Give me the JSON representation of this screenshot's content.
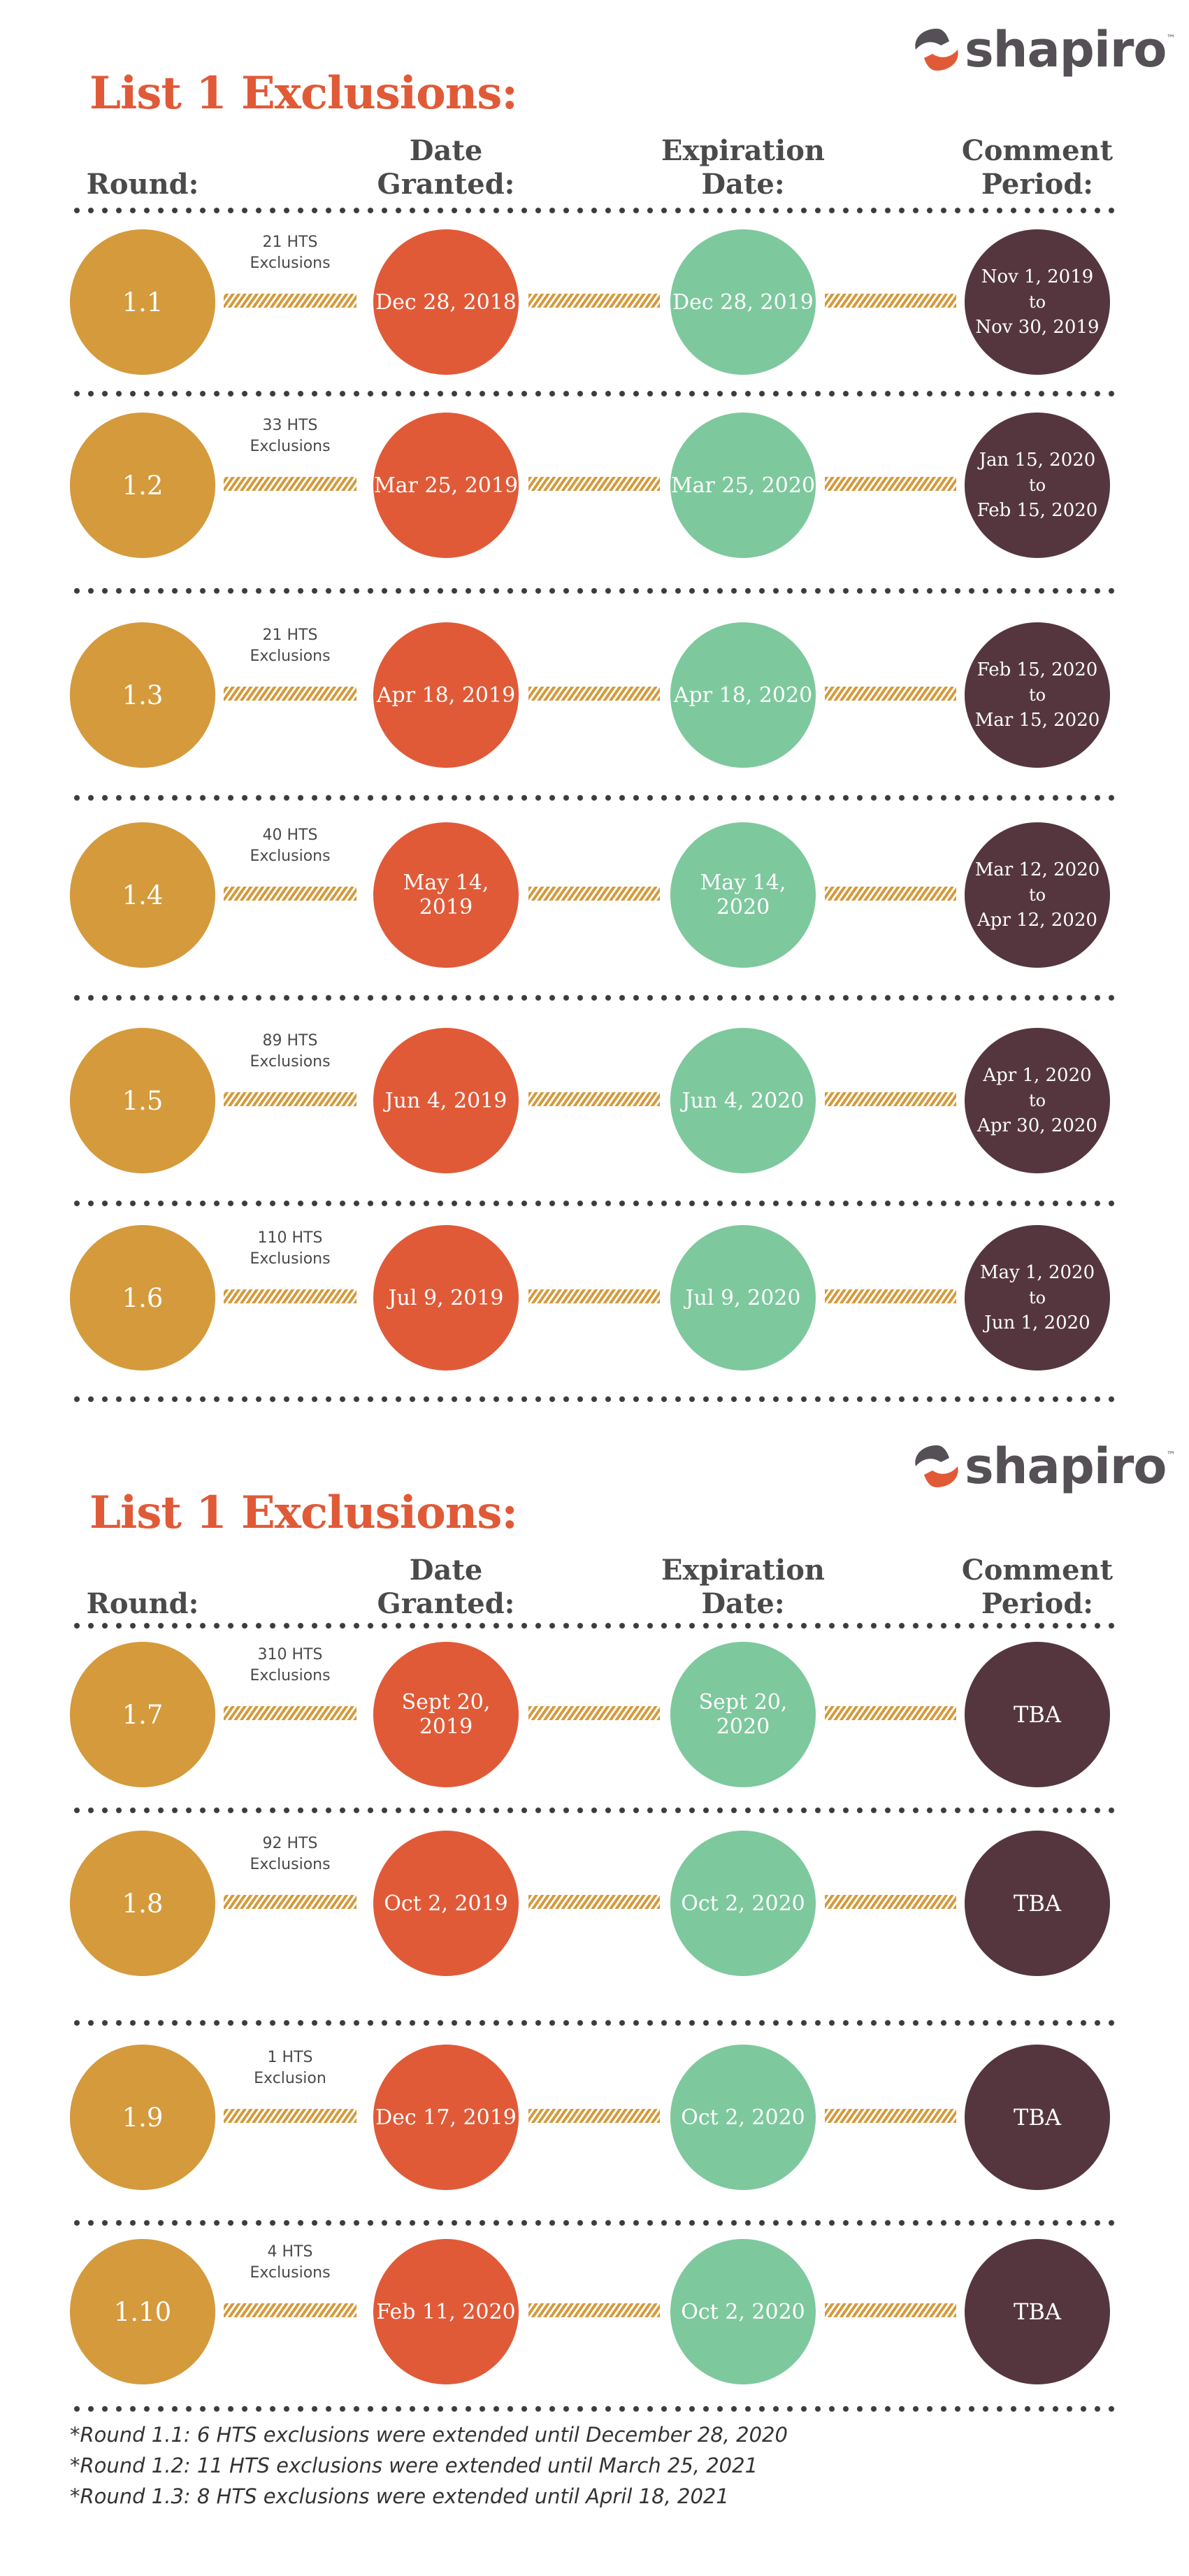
{
  "colors": {
    "title": "#e05a38",
    "round": "#d49a3c",
    "granted": "#e05a38",
    "expiration": "#7ec89e",
    "comment": "#55363f"
  },
  "logo": {
    "text": "shapiro",
    "tm": "™",
    "icon": "shapiro-swirl-icon"
  },
  "sections": [
    {
      "title": "List 1 Exclusions:",
      "headers": {
        "round": "Round:",
        "granted_1": "Date",
        "granted_2": "Granted:",
        "expiration_1": "Expiration",
        "expiration_2": "Date:",
        "comment_1": "Comment",
        "comment_2": "Period:"
      },
      "rows": [
        {
          "round": "1.1",
          "hts_1": "21 HTS",
          "hts_2": "Exclusions",
          "granted": "Dec 28, 2018",
          "expiration": "Dec 28, 2019",
          "comment_1": "Nov 1, 2019",
          "comment_to": "to",
          "comment_2": "Nov 30, 2019"
        },
        {
          "round": "1.2",
          "hts_1": "33 HTS",
          "hts_2": "Exclusions",
          "granted": "Mar 25, 2019",
          "expiration": "Mar 25, 2020",
          "comment_1": "Jan 15, 2020",
          "comment_to": "to",
          "comment_2": "Feb 15, 2020"
        },
        {
          "round": "1.3",
          "hts_1": "21 HTS",
          "hts_2": "Exclusions",
          "granted": "Apr 18, 2019",
          "expiration": "Apr 18, 2020",
          "comment_1": "Feb 15, 2020",
          "comment_to": "to",
          "comment_2": "Mar 15, 2020"
        },
        {
          "round": "1.4",
          "hts_1": "40 HTS",
          "hts_2": "Exclusions",
          "granted": "May 14, 2019",
          "expiration": "May 14, 2020",
          "comment_1": "Mar 12, 2020",
          "comment_to": "to",
          "comment_2": "Apr 12, 2020"
        },
        {
          "round": "1.5",
          "hts_1": "89 HTS",
          "hts_2": "Exclusions",
          "granted": "Jun 4, 2019",
          "expiration": "Jun 4, 2020",
          "comment_1": "Apr 1, 2020",
          "comment_to": "to",
          "comment_2": "Apr 30, 2020"
        },
        {
          "round": "1.6",
          "hts_1": "110 HTS",
          "hts_2": "Exclusions",
          "granted": "Jul 9, 2019",
          "expiration": "Jul 9, 2020",
          "comment_1": "May 1, 2020",
          "comment_to": "to",
          "comment_2": "Jun 1, 2020"
        }
      ]
    },
    {
      "title": "List 1 Exclusions:",
      "headers": {
        "round": "Round:",
        "granted_1": "Date",
        "granted_2": "Granted:",
        "expiration_1": "Expiration",
        "expiration_2": "Date:",
        "comment_1": "Comment",
        "comment_2": "Period:"
      },
      "rows": [
        {
          "round": "1.7",
          "hts_1": "310 HTS",
          "hts_2": "Exclusions",
          "granted": "Sept 20, 2019",
          "expiration": "Sept 20, 2020",
          "comment": "TBA"
        },
        {
          "round": "1.8",
          "hts_1": "92 HTS",
          "hts_2": "Exclusions",
          "granted": "Oct 2, 2019",
          "expiration": "Oct 2, 2020",
          "comment": "TBA"
        },
        {
          "round": "1.9",
          "hts_1": "1 HTS",
          "hts_2": "Exclusion",
          "granted": "Dec 17, 2019",
          "expiration": "Oct 2, 2020",
          "comment": "TBA"
        },
        {
          "round": "1.10",
          "hts_1": "4 HTS",
          "hts_2": "Exclusions",
          "granted": "Feb 11, 2020",
          "expiration": "Oct 2, 2020",
          "comment": "TBA"
        }
      ]
    }
  ],
  "footnotes": [
    "*Round 1.1: 6 HTS exclusions were extended until December 28, 2020",
    "*Round 1.2: 11 HTS exclusions were extended until March 25, 2021",
    "*Round 1.3: 8 HTS exclusions were extended until April 18, 2021"
  ]
}
